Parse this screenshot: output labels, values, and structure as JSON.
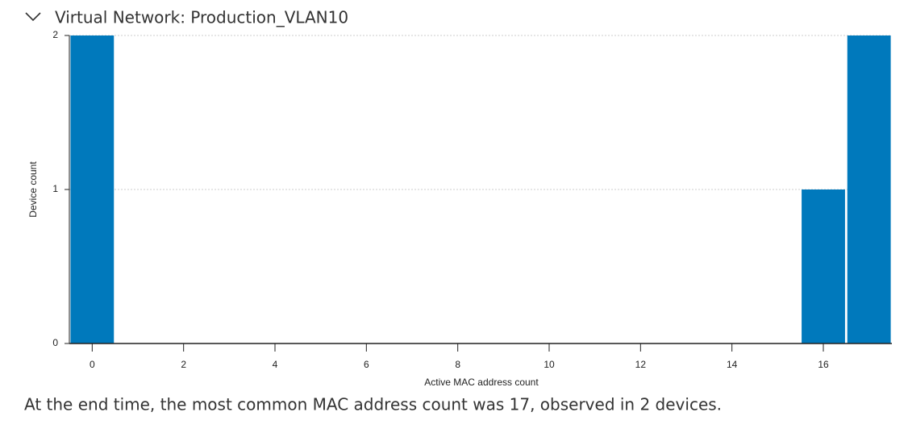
{
  "header": {
    "title": "Virtual Network: Production_VLAN10"
  },
  "chart_data": {
    "type": "bar",
    "x": [
      0,
      16,
      17
    ],
    "values": [
      2,
      1,
      2
    ],
    "color": "#0079bc",
    "xlim": [
      -0.5,
      17.5
    ],
    "xticks": [
      0,
      2,
      4,
      6,
      8,
      10,
      12,
      14,
      16
    ],
    "ylim": [
      0,
      2
    ],
    "yticks": [
      0,
      1,
      2
    ],
    "xlabel": "Active MAC address count",
    "ylabel": "Device count",
    "grid": true
  },
  "caption": "At the end time, the most common MAC address count was 17, observed in 2 devices."
}
